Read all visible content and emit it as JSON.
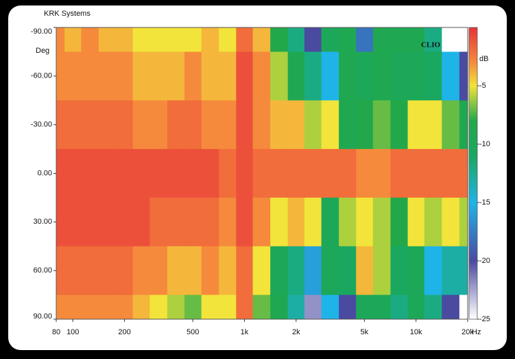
{
  "chart_data": {
    "type": "heatmap",
    "title": "KRK Systems",
    "y_label": "Deg",
    "z_label": "dB",
    "annotation": "CLIO",
    "x_unit": "Hz",
    "xlog": true,
    "x": [
      80,
      100,
      125,
      160,
      200,
      250,
      315,
      400,
      500,
      630,
      800,
      1000,
      1250,
      1600,
      2000,
      2500,
      3150,
      4000,
      5000,
      6300,
      8000,
      10000,
      12500,
      16000,
      20000
    ],
    "y": [
      -90,
      -60,
      -30,
      0,
      30,
      60,
      90
    ],
    "z": [
      [
        -3,
        -4,
        -3,
        -4,
        -4,
        -5,
        -5,
        -5,
        -5,
        -4,
        -5,
        -2,
        -4,
        -8,
        -12,
        -20,
        -10,
        -9,
        -18,
        -9,
        -9,
        -9,
        -12,
        -25,
        -25
      ],
      [
        -3,
        -3,
        -3,
        -3,
        -3,
        -4,
        -4,
        -4,
        -3,
        -4,
        -4,
        -1,
        -3,
        -6,
        -9,
        -12,
        -15,
        -9,
        -10,
        -9,
        -10,
        -10,
        -11,
        -15,
        -20
      ],
      [
        -2,
        -2,
        -2,
        -2,
        -2,
        -3,
        -3,
        -2,
        -2,
        -3,
        -3,
        -1,
        -3,
        -4,
        -4,
        -6,
        -5,
        -9,
        -8,
        -7,
        -8,
        -5,
        -5,
        -7,
        -9
      ],
      [
        -1,
        -1,
        -1,
        -1,
        -1,
        -1,
        -1,
        -1,
        -1,
        -1,
        -2,
        -1,
        -2,
        -2,
        -2,
        -2,
        -2,
        -2,
        -3,
        -3,
        -2,
        -2,
        -2,
        -2,
        -2
      ],
      [
        -1,
        -1,
        -1,
        -1,
        -1,
        -1,
        -2,
        -2,
        -2,
        -2,
        -3,
        -1,
        -3,
        -5,
        -4,
        -5,
        -10,
        -6,
        -5,
        -6,
        -8,
        -5,
        -6,
        -5,
        -6
      ],
      [
        -2,
        -2,
        -2,
        -2,
        -2,
        -3,
        -3,
        -4,
        -4,
        -3,
        -4,
        -2,
        -5,
        -10,
        -12,
        -16,
        -10,
        -11,
        -4,
        -6,
        -11,
        -10,
        -15,
        -13,
        -13
      ],
      [
        -3,
        -3,
        -3,
        -3,
        -3,
        -4,
        -5,
        -6,
        -7,
        -5,
        -5,
        -2,
        -7,
        -9,
        -13,
        -22,
        -15,
        -20,
        -10,
        -10,
        -12,
        -10,
        -12,
        -20,
        -25
      ]
    ],
    "xlim": [
      80,
      20000
    ],
    "xticks": [
      80,
      100,
      200,
      500,
      {
        "value": 1000,
        "label": "1k"
      },
      {
        "value": 2000,
        "label": "2k"
      },
      {
        "value": 5000,
        "label": "5k"
      },
      {
        "value": 10000,
        "label": "10k"
      },
      {
        "value": 20000,
        "label": "20k"
      }
    ],
    "ylim": [
      -90,
      90
    ],
    "yticks": [
      {
        "value": -90,
        "label": "-90.00"
      },
      {
        "value": -60,
        "label": "-60.00"
      },
      {
        "value": -30,
        "label": "-30.00"
      },
      {
        "value": 0,
        "label": "0.00"
      },
      {
        "value": 30,
        "label": "30.00"
      },
      {
        "value": 60,
        "label": "60.00"
      },
      {
        "value": 90,
        "label": "90.00"
      }
    ],
    "zlim": [
      -25,
      0
    ],
    "zticks": [
      -5,
      -10,
      -15,
      -20,
      -25
    ],
    "colorscale": [
      {
        "value": 0,
        "color": "#e8333a"
      },
      {
        "value": -3,
        "color": "#f58a3c"
      },
      {
        "value": -5,
        "color": "#f2e43a"
      },
      {
        "value": -8,
        "color": "#22a84a"
      },
      {
        "value": -11,
        "color": "#1aa860"
      },
      {
        "value": -15,
        "color": "#1eb4e8"
      },
      {
        "value": -20,
        "color": "#4a4aa0"
      },
      {
        "value": -25,
        "color": "#ffffff"
      }
    ]
  }
}
